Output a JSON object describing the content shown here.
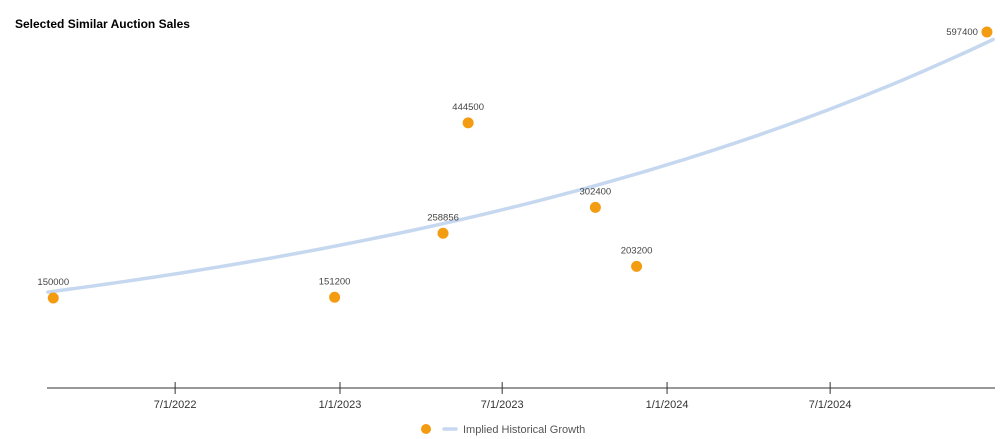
{
  "chart_data": {
    "type": "scatter",
    "title": "Selected Similar Auction Sales",
    "xlabel": "",
    "ylabel": "",
    "x_ticks": [
      "7/1/2022",
      "1/1/2023",
      "7/1/2023",
      "1/1/2024",
      "7/1/2024"
    ],
    "grid": false,
    "legend_position": "bottom",
    "series": [
      {
        "type": "scatter",
        "color": "#F39C12",
        "points": [
          {
            "date": "2022-02-15",
            "value": 150000,
            "label": "150000"
          },
          {
            "date": "2022-12-26",
            "value": 151200,
            "label": "151200"
          },
          {
            "date": "2023-04-26",
            "value": 258856,
            "label": "258856"
          },
          {
            "date": "2023-05-24",
            "value": 444500,
            "label": "444500"
          },
          {
            "date": "2023-10-13",
            "value": 302400,
            "label": "302400"
          },
          {
            "date": "2023-11-28",
            "value": 203200,
            "label": "203200"
          },
          {
            "date": "2024-12-23",
            "value": 597400,
            "label": "597400"
          }
        ]
      },
      {
        "name": "Implied Historical Growth",
        "type": "line",
        "color": "#C6D8EF",
        "start": {
          "date": "2022-02-09",
          "value": 160000
        },
        "end": {
          "date": "2024-12-30",
          "value": 585000
        }
      }
    ]
  }
}
